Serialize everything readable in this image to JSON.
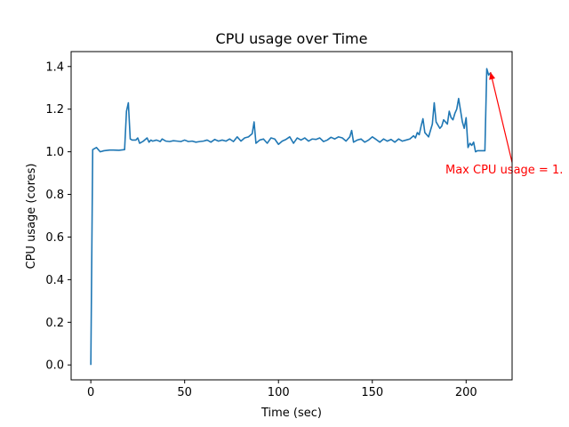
{
  "chart_data": {
    "type": "line",
    "title": "CPU usage over Time",
    "xlabel": "Time (sec)",
    "ylabel": "CPU usage (cores)",
    "xlim": [
      -10.5,
      224.5
    ],
    "ylim": [
      -0.07,
      1.47
    ],
    "xticks": [
      0,
      50,
      100,
      150,
      200
    ],
    "yticks": [
      0.0,
      0.2,
      0.4,
      0.6,
      0.8,
      1.0,
      1.2,
      1.4
    ],
    "xtick_labels": [
      "0",
      "50",
      "100",
      "150",
      "200"
    ],
    "ytick_labels": [
      "0.0",
      "0.2",
      "0.4",
      "0.6",
      "0.8",
      "1.0",
      "1.2",
      "1.4"
    ],
    "grid": false,
    "series": [
      {
        "color": "#1f77b4",
        "x": [
          0,
          1,
          3,
          5,
          7,
          10,
          12,
          15,
          18,
          19,
          20,
          21,
          22,
          24,
          25,
          26,
          28,
          30,
          31,
          32,
          33,
          35,
          37,
          38,
          40,
          42,
          44,
          46,
          48,
          50,
          52,
          54,
          56,
          58,
          60,
          62,
          64,
          66,
          68,
          70,
          72,
          74,
          76,
          78,
          80,
          82,
          84,
          86,
          87,
          88,
          90,
          92,
          94,
          96,
          98,
          100,
          102,
          104,
          106,
          108,
          110,
          112,
          114,
          116,
          118,
          120,
          122,
          124,
          126,
          128,
          130,
          132,
          134,
          136,
          138,
          139,
          140,
          142,
          144,
          146,
          148,
          150,
          152,
          154,
          156,
          158,
          160,
          162,
          164,
          166,
          168,
          170,
          172,
          173,
          174,
          175,
          176,
          177,
          178,
          180,
          181,
          182,
          183,
          184,
          186,
          187,
          188,
          189,
          190,
          191,
          192,
          193,
          194,
          195,
          196,
          198,
          199,
          200,
          201,
          202,
          203,
          204,
          205,
          206,
          208,
          210,
          211,
          212,
          213
        ],
        "y": [
          0.0,
          1.01,
          1.02,
          1.0,
          1.005,
          1.008,
          1.008,
          1.007,
          1.01,
          1.19,
          1.23,
          1.06,
          1.055,
          1.055,
          1.065,
          1.04,
          1.05,
          1.065,
          1.045,
          1.055,
          1.05,
          1.055,
          1.048,
          1.06,
          1.05,
          1.048,
          1.052,
          1.05,
          1.048,
          1.055,
          1.048,
          1.05,
          1.045,
          1.048,
          1.05,
          1.055,
          1.045,
          1.058,
          1.05,
          1.055,
          1.05,
          1.06,
          1.048,
          1.07,
          1.05,
          1.065,
          1.07,
          1.085,
          1.14,
          1.04,
          1.055,
          1.06,
          1.04,
          1.065,
          1.06,
          1.035,
          1.05,
          1.058,
          1.07,
          1.04,
          1.065,
          1.055,
          1.065,
          1.05,
          1.06,
          1.058,
          1.065,
          1.048,
          1.055,
          1.068,
          1.06,
          1.07,
          1.065,
          1.05,
          1.07,
          1.1,
          1.045,
          1.055,
          1.06,
          1.045,
          1.055,
          1.07,
          1.058,
          1.045,
          1.06,
          1.05,
          1.058,
          1.045,
          1.06,
          1.05,
          1.055,
          1.06,
          1.075,
          1.065,
          1.09,
          1.08,
          1.12,
          1.155,
          1.09,
          1.07,
          1.1,
          1.13,
          1.23,
          1.14,
          1.11,
          1.12,
          1.15,
          1.14,
          1.13,
          1.19,
          1.16,
          1.15,
          1.18,
          1.2,
          1.25,
          1.14,
          1.11,
          1.16,
          1.02,
          1.04,
          1.03,
          1.045,
          1.0,
          1.005,
          1.005,
          1.005,
          1.39,
          1.36,
          1.37
        ]
      }
    ],
    "annotation": {
      "text": "Max CPU usage = 1.",
      "color": "#ff0000",
      "point": {
        "x": 213,
        "y": 1.39
      },
      "text_anchor": {
        "x": 224.5,
        "y": 0.95
      }
    }
  }
}
